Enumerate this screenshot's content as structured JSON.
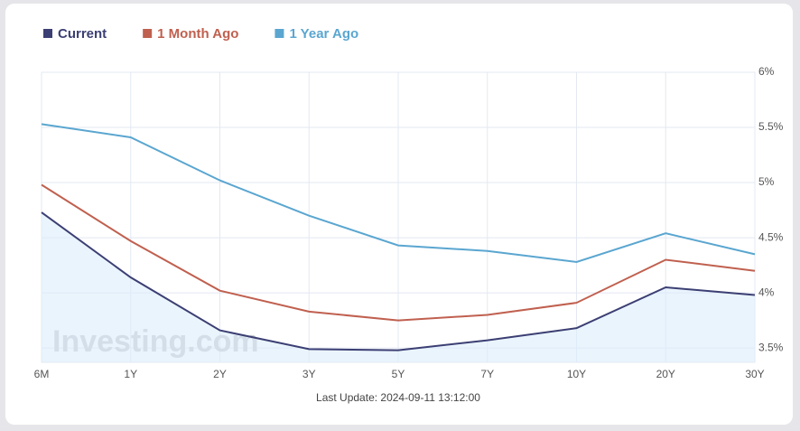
{
  "chart_data": {
    "type": "line",
    "categories": [
      "6M",
      "1Y",
      "2Y",
      "3Y",
      "5Y",
      "7Y",
      "10Y",
      "20Y",
      "30Y"
    ],
    "series": [
      {
        "name": "Current",
        "color": "#3b3f73",
        "values": [
          4.73,
          4.14,
          3.66,
          3.49,
          3.48,
          3.57,
          3.68,
          4.05,
          3.98
        ]
      },
      {
        "name": "1 Month Ago",
        "color": "#c0604f",
        "values": [
          4.98,
          4.47,
          4.02,
          3.83,
          3.75,
          3.8,
          3.91,
          4.3,
          4.2
        ]
      },
      {
        "name": "1 Year Ago",
        "color": "#5aa6d0",
        "values": [
          5.53,
          5.41,
          5.02,
          4.7,
          4.43,
          4.38,
          4.28,
          4.54,
          4.35
        ]
      }
    ],
    "ylim": [
      3.37,
      6
    ],
    "yticks": [
      {
        "value": 3.5,
        "label": "3.5%"
      },
      {
        "value": 4,
        "label": "4%"
      },
      {
        "value": 4.5,
        "label": "4.5%"
      },
      {
        "value": 5,
        "label": "5%"
      },
      {
        "value": 5.5,
        "label": "5.5%"
      },
      {
        "value": 6,
        "label": "6%"
      }
    ],
    "grid": true,
    "legend": "top-left",
    "watermark": "Investing.com",
    "footer": "Last Update: 2024-09-11 13:12:00"
  }
}
